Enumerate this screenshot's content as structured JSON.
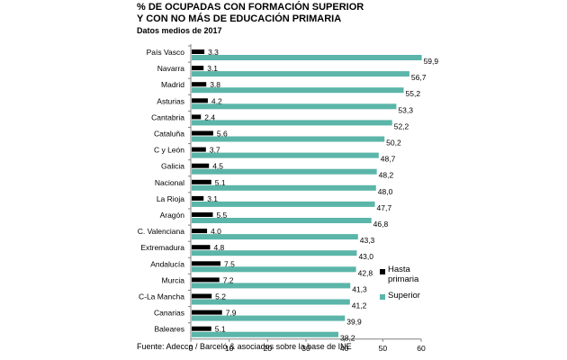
{
  "chart_data": {
    "type": "bar",
    "orientation": "horizontal",
    "title": [
      "% DE OCUPADAS CON FORMACIÓN SUPERIOR",
      "Y CON NO MÁS DE EDUCACIÓN PRIMARIA"
    ],
    "subtitle": "Datos medios de 2017",
    "source": "Fuente: Adecco / Barceló & asociados sobre la base de INE",
    "categories": [
      "País Vasco",
      "Navarra",
      "Madrid",
      "Asturias",
      "Cantabria",
      "Cataluña",
      "C y León",
      "Galicia",
      "Nacional",
      "La Rioja",
      "Aragón",
      "C. Valenciana",
      "Extremadura",
      "Andalucía",
      "Murcia",
      "C-La Mancha",
      "Canarias",
      "Baleares"
    ],
    "series": [
      {
        "name": "Hasta primaria",
        "legend_lines": [
          "Hasta",
          "primaria"
        ],
        "color": "#000000",
        "values": [
          3.3,
          3.1,
          3.8,
          4.2,
          2.4,
          5.6,
          3.7,
          4.5,
          5.1,
          3.1,
          5.5,
          4.0,
          4.8,
          7.5,
          7.2,
          5.2,
          7.9,
          5.1
        ],
        "labels": [
          "3,3",
          "3,1",
          "3,8",
          "4,2",
          "2,4",
          "5,6",
          "3,7",
          "4,5",
          "5,1",
          "3,1",
          "5,5",
          "4,0",
          "4,8",
          "7,5",
          "7,2",
          "5,2",
          "7,9",
          "5,1"
        ]
      },
      {
        "name": "Superior",
        "legend_lines": [
          "Superior"
        ],
        "color": "#5bb5a9",
        "values": [
          59.9,
          56.7,
          55.2,
          53.3,
          52.2,
          50.2,
          48.7,
          48.2,
          48.0,
          47.7,
          46.8,
          43.3,
          43.0,
          42.8,
          41.3,
          41.2,
          39.9,
          38.2
        ],
        "labels": [
          "59,9",
          "56,7",
          "55,2",
          "53,3",
          "52,2",
          "50,2",
          "48,7",
          "48,2",
          "48,0",
          "47,7",
          "46,8",
          "43,3",
          "43,0",
          "42,8",
          "41,3",
          "41,2",
          "39,9",
          "38,2"
        ]
      }
    ],
    "xlim": [
      0,
      60
    ],
    "xticks": [
      0,
      10,
      20,
      30,
      40,
      50,
      60
    ],
    "grid": false,
    "legend_position": "right-bottom"
  }
}
